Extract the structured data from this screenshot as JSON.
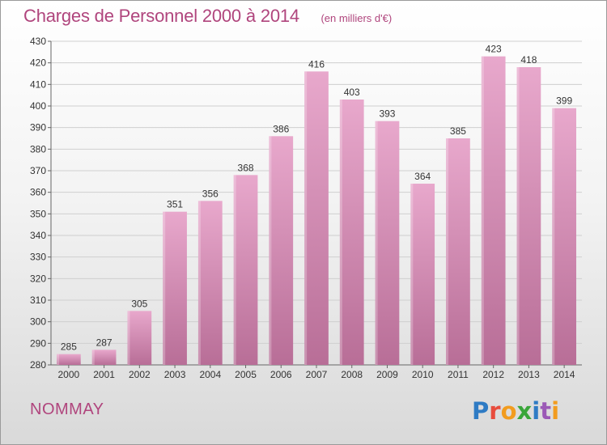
{
  "chart_data": {
    "type": "bar",
    "title": "Charges de Personnel 2000 à 2014",
    "subtitle": "(en milliers d'€)",
    "categories": [
      "2000",
      "2001",
      "2002",
      "2003",
      "2004",
      "2005",
      "2006",
      "2007",
      "2008",
      "2009",
      "2010",
      "2011",
      "2012",
      "2013",
      "2014"
    ],
    "values": [
      285,
      287,
      305,
      351,
      356,
      368,
      386,
      416,
      403,
      393,
      364,
      385,
      423,
      418,
      399
    ],
    "ylim": [
      280,
      430
    ],
    "yticks": [
      280,
      290,
      300,
      310,
      320,
      330,
      340,
      350,
      360,
      370,
      380,
      390,
      400,
      410,
      420,
      430
    ],
    "grid": true,
    "bar_color_top": "#e8a8cc",
    "bar_color_bottom": "#b86e97"
  },
  "commune_name": "NOMMAY",
  "logo_text": "Proxiti",
  "logo_colors": [
    "#2e7bc4",
    "#e84c3d",
    "#f29c1f",
    "#3aa63a",
    "#2e7bc4",
    "#9b59b6",
    "#f29c1f"
  ],
  "accent_color": "#b0457d"
}
